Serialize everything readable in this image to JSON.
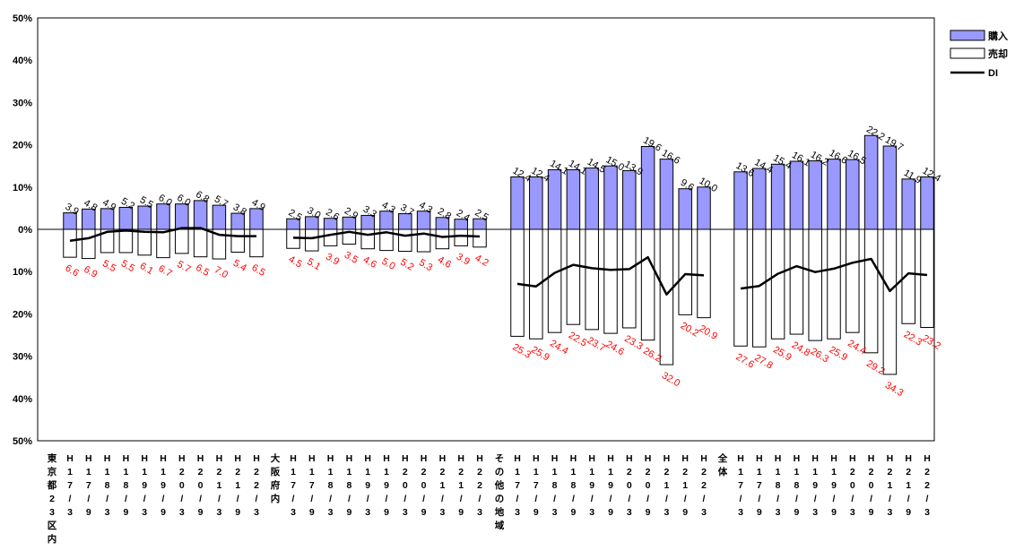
{
  "chart_data": {
    "type": "bar",
    "title": "",
    "xlabel": "",
    "ylabel": "",
    "ylim": [
      -50,
      50
    ],
    "y_ticks": [
      "50%",
      "40%",
      "30%",
      "20%",
      "10%",
      "0%",
      "10%",
      "20%",
      "30%",
      "40%",
      "50%"
    ],
    "legend_position": "top-right",
    "colors": {
      "buy": "#9999ff",
      "sell": "#ffffff",
      "di": "#000000",
      "neg_label": "#ff0000"
    },
    "legend": [
      {
        "key": "buy",
        "label": "購入"
      },
      {
        "key": "sell",
        "label": "売却"
      },
      {
        "key": "di",
        "label": "DI"
      }
    ],
    "groups": [
      {
        "name": "東京都23区内",
        "categories": [
          "H17/3",
          "H17/9",
          "H18/3",
          "H18/9",
          "H19/3",
          "H19/9",
          "H20/3",
          "H20/9",
          "H21/3",
          "H21/9",
          "H22/3"
        ],
        "buy": [
          3.9,
          4.8,
          4.9,
          5.2,
          5.5,
          6.0,
          6.0,
          6.8,
          5.7,
          3.8,
          4.9
        ],
        "sell": [
          6.6,
          6.9,
          5.5,
          5.5,
          6.1,
          6.7,
          5.7,
          6.5,
          7.0,
          5.4,
          6.5
        ],
        "di": [
          -2.7,
          -2.1,
          -0.6,
          -0.3,
          -0.6,
          -0.7,
          0.3,
          0.3,
          -1.3,
          -1.6,
          -1.6
        ]
      },
      {
        "name": "大阪府内",
        "categories": [
          "H17/3",
          "H17/9",
          "H18/3",
          "H18/9",
          "H19/3",
          "H19/9",
          "H20/3",
          "H20/9",
          "H21/3",
          "H21/9",
          "H22/3"
        ],
        "buy": [
          2.5,
          3.0,
          2.6,
          2.9,
          3.3,
          4.3,
          3.7,
          4.3,
          2.8,
          2.4,
          2.5
        ],
        "sell": [
          4.5,
          5.1,
          3.9,
          3.5,
          4.6,
          5.0,
          5.2,
          5.3,
          4.6,
          3.9,
          4.2
        ],
        "di": [
          -2.0,
          -2.1,
          -1.3,
          -0.6,
          -1.3,
          -0.7,
          -1.5,
          -1.0,
          -1.8,
          -1.5,
          -1.7
        ]
      },
      {
        "name": "その他の地域",
        "categories": [
          "H17/3",
          "H17/9",
          "H18/3",
          "H18/9",
          "H19/3",
          "H19/9",
          "H20/3",
          "H20/9",
          "H21/3",
          "H21/9",
          "H22/3"
        ],
        "buy": [
          12.4,
          12.4,
          14.1,
          14.1,
          14.5,
          15.0,
          13.9,
          19.6,
          16.6,
          9.6,
          10.0
        ],
        "sell": [
          25.3,
          25.9,
          24.4,
          22.5,
          23.7,
          24.6,
          23.3,
          26.2,
          32.0,
          20.2,
          20.9
        ],
        "di": [
          -12.9,
          -13.5,
          -10.3,
          -8.4,
          -9.2,
          -9.6,
          -9.4,
          -6.6,
          -15.4,
          -10.6,
          -10.9
        ]
      },
      {
        "name": "全体",
        "categories": [
          "H17/3",
          "H17/9",
          "H18/3",
          "H18/9",
          "H19/3",
          "H19/9",
          "H20/3",
          "H20/9",
          "H21/3",
          "H21/9",
          "H22/3"
        ],
        "buy": [
          13.6,
          14.4,
          15.4,
          16.1,
          16.2,
          16.6,
          16.5,
          22.2,
          19.7,
          11.9,
          12.4
        ],
        "sell": [
          27.6,
          27.8,
          25.9,
          24.8,
          26.3,
          25.9,
          24.4,
          29.2,
          34.3,
          22.3,
          23.2
        ],
        "di": [
          -14.0,
          -13.4,
          -10.5,
          -8.7,
          -10.1,
          -9.3,
          -7.9,
          -7.0,
          -14.6,
          -10.4,
          -10.8
        ]
      }
    ]
  }
}
